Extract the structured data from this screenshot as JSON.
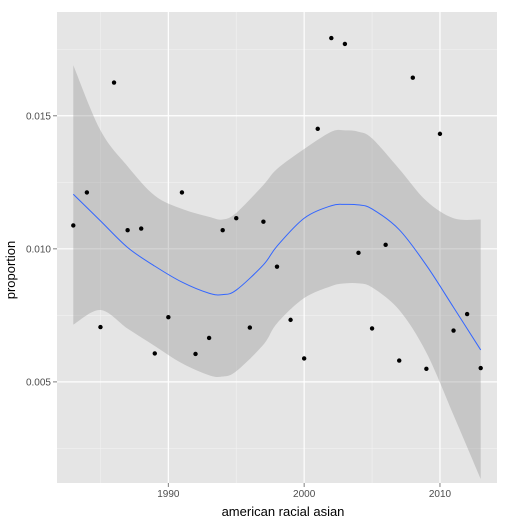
{
  "chart_data": {
    "type": "scatter",
    "title": "",
    "xlabel": "american racial asian",
    "ylabel": "proportion",
    "xlim": [
      1981.8,
      2014.2
    ],
    "ylim": [
      0.0012,
      0.0189
    ],
    "x_ticks": [
      1990,
      2000,
      2010
    ],
    "x_tick_labels": [
      "1990",
      "2000",
      "2010"
    ],
    "y_ticks": [
      0.005,
      0.01,
      0.015
    ],
    "y_tick_labels": [
      "0.005",
      "0.010",
      "0.015"
    ],
    "grid": true,
    "colors": {
      "panel": "#e5e5e5",
      "grid_major": "#ffffff",
      "grid_minor": "#f2f2f2",
      "points": "#000000",
      "smooth_line": "#3366ff",
      "ribbon": "#999999"
    },
    "points": [
      {
        "x": 1983,
        "y": 0.01088
      },
      {
        "x": 1984,
        "y": 0.01212
      },
      {
        "x": 1985,
        "y": 0.00706
      },
      {
        "x": 1986,
        "y": 0.01625
      },
      {
        "x": 1987,
        "y": 0.0107
      },
      {
        "x": 1988,
        "y": 0.01076
      },
      {
        "x": 1989,
        "y": 0.00607
      },
      {
        "x": 1990,
        "y": 0.00743
      },
      {
        "x": 1991,
        "y": 0.01212
      },
      {
        "x": 1992,
        "y": 0.00605
      },
      {
        "x": 1993,
        "y": 0.00665
      },
      {
        "x": 1994,
        "y": 0.0107
      },
      {
        "x": 1995,
        "y": 0.01115
      },
      {
        "x": 1996,
        "y": 0.00704
      },
      {
        "x": 1997,
        "y": 0.01102
      },
      {
        "x": 1998,
        "y": 0.00933
      },
      {
        "x": 1999,
        "y": 0.00733
      },
      {
        "x": 2000,
        "y": 0.00588
      },
      {
        "x": 2001,
        "y": 0.01451
      },
      {
        "x": 2002,
        "y": 0.01792
      },
      {
        "x": 2003,
        "y": 0.0177
      },
      {
        "x": 2004,
        "y": 0.00985
      },
      {
        "x": 2005,
        "y": 0.00701
      },
      {
        "x": 2006,
        "y": 0.01015
      },
      {
        "x": 2007,
        "y": 0.0058
      },
      {
        "x": 2008,
        "y": 0.01643
      },
      {
        "x": 2009,
        "y": 0.00549
      },
      {
        "x": 2010,
        "y": 0.01432
      },
      {
        "x": 2011,
        "y": 0.00693
      },
      {
        "x": 2012,
        "y": 0.00755
      },
      {
        "x": 2013,
        "y": 0.00552
      }
    ],
    "smooth": {
      "x": [
        1983,
        1985,
        1987,
        1989,
        1991,
        1993,
        1994,
        1995,
        1997,
        1998,
        2000,
        2002,
        2003,
        2004,
        2005,
        2007,
        2009,
        2011,
        2013
      ],
      "fit": [
        0.01205,
        0.01105,
        0.01005,
        0.00935,
        0.00875,
        0.00833,
        0.00828,
        0.00845,
        0.0094,
        0.0101,
        0.01115,
        0.01162,
        0.01167,
        0.01165,
        0.0115,
        0.01072,
        0.00938,
        0.0078,
        0.0062
      ],
      "lower": [
        0.00715,
        0.0077,
        0.007,
        0.00635,
        0.0057,
        0.00525,
        0.0052,
        0.0054,
        0.0064,
        0.0072,
        0.00815,
        0.0086,
        0.0087,
        0.0087,
        0.00855,
        0.0077,
        0.0061,
        0.00375,
        0.00135
      ],
      "upper": [
        0.0169,
        0.01445,
        0.0131,
        0.012,
        0.0115,
        0.0112,
        0.0111,
        0.01135,
        0.0124,
        0.013,
        0.01375,
        0.0144,
        0.01445,
        0.0144,
        0.01415,
        0.013,
        0.0118,
        0.01115,
        0.0111
      ]
    }
  }
}
